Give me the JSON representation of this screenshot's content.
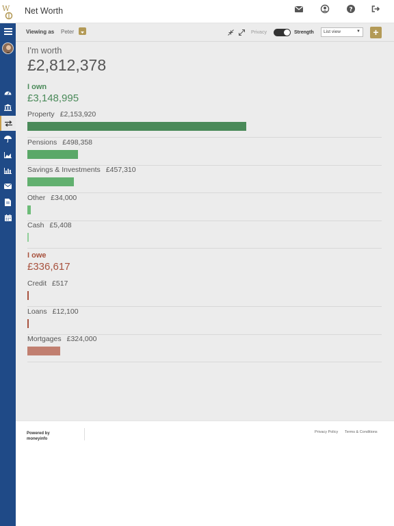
{
  "header": {
    "title": "Net Worth",
    "icons": [
      "envelope-icon",
      "user-icon",
      "help-icon",
      "logout-icon"
    ]
  },
  "sidebar": {
    "items": [
      "menu-icon",
      "avatar",
      "dashboard-icon",
      "bank-icon",
      "transfer-icon",
      "umbrella-icon",
      "area-chart-icon",
      "bar-chart-icon",
      "mail-icon",
      "document-icon",
      "calendar-icon"
    ],
    "active": "transfer-icon"
  },
  "toolbar": {
    "viewing_label": "Viewing as",
    "viewing_name": "Peter",
    "privacy_label": "Privacy",
    "strength_label": "Strength",
    "view_select": "List view"
  },
  "summary": {
    "worth_label": "I'm worth",
    "worth_value": "£2,812,378"
  },
  "own": {
    "label": "I own",
    "total": "£3,148,995",
    "color": "#4a8a59",
    "items": [
      {
        "name": "Property",
        "amount": "£2,153,920",
        "value": 2153920,
        "color": "#4a8a59"
      },
      {
        "name": "Pensions",
        "amount": "£498,358",
        "value": 498358,
        "color": "#5aa868"
      },
      {
        "name": "Savings & Investments",
        "amount": "£457,310",
        "value": 457310,
        "color": "#62b06f"
      },
      {
        "name": "Other",
        "amount": "£34,000",
        "value": 34000,
        "color": "#6dbb78"
      },
      {
        "name": "Cash",
        "amount": "£5,408",
        "value": 5408,
        "color": "#8fcf98"
      }
    ]
  },
  "owe": {
    "label": "I owe",
    "total": "£336,617",
    "color": "#a8523e",
    "items": [
      {
        "name": "Credit",
        "amount": "£517",
        "value": 517,
        "color": "#a8523e"
      },
      {
        "name": "Loans",
        "amount": "£12,100",
        "value": 12100,
        "color": "#a8523e"
      },
      {
        "name": "Mortgages",
        "amount": "£324,000",
        "value": 324000,
        "color": "#c17f70"
      }
    ]
  },
  "footer": {
    "powered_line1": "Powered by",
    "powered_line2": "moneyinfo",
    "privacy_link": "Privacy Policy",
    "terms_link": "Terms & Conditions"
  }
}
